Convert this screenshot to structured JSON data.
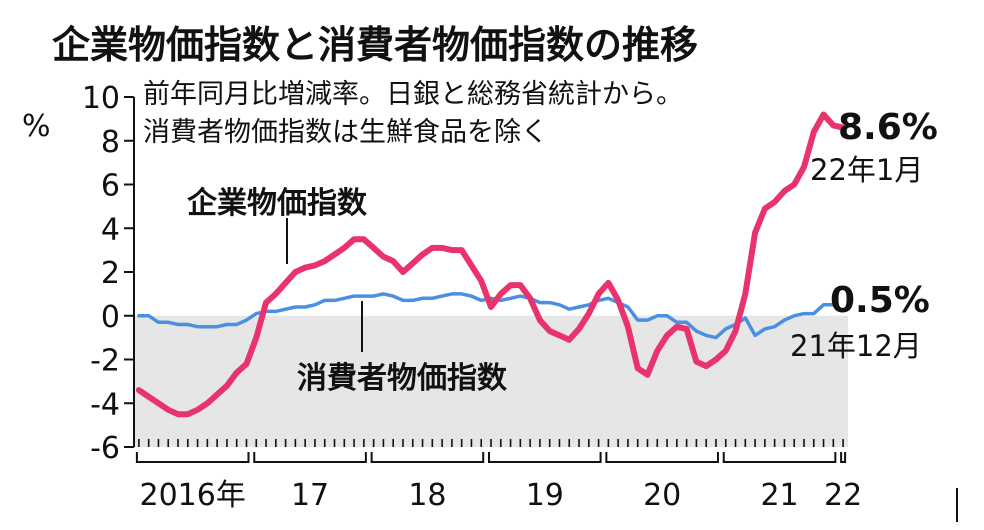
{
  "chart_data": {
    "type": "line",
    "title": "企業物価指数と消費者物価指数の推移",
    "subtitle_lines": [
      "前年同月比増減率。日銀と総務省統計から。",
      "消費者物価指数は生鮮食品を除く"
    ],
    "ylabel": "%",
    "ylim": [
      -6,
      10
    ],
    "yticks": [
      10,
      8,
      6,
      4,
      2,
      0,
      -2,
      -4,
      -6
    ],
    "x_start": "2016-01",
    "x_month_count": 73,
    "year_labels": [
      "2016年",
      "17",
      "18",
      "19",
      "20",
      "21",
      "22"
    ],
    "negative_region_shaded": true,
    "series": [
      {
        "name": "企業物価指数",
        "color": "#e8336d",
        "start": "2016-01",
        "values": [
          -3.4,
          -3.7,
          -4.0,
          -4.3,
          -4.5,
          -4.5,
          -4.3,
          -4.0,
          -3.6,
          -3.2,
          -2.6,
          -2.2,
          -1.0,
          0.6,
          1.0,
          1.5,
          2.0,
          2.2,
          2.3,
          2.5,
          2.8,
          3.1,
          3.5,
          3.5,
          3.1,
          2.7,
          2.5,
          2.0,
          2.4,
          2.8,
          3.1,
          3.1,
          3.0,
          3.0,
          2.3,
          1.6,
          0.4,
          1.0,
          1.4,
          1.4,
          0.8,
          -0.2,
          -0.7,
          -0.9,
          -1.1,
          -0.6,
          0.1,
          1.0,
          1.5,
          0.7,
          -0.5,
          -2.4,
          -2.7,
          -1.6,
          -0.9,
          -0.5,
          -0.6,
          -2.1,
          -2.3,
          -2.0,
          -1.6,
          -0.7,
          1.0,
          3.8,
          4.9,
          5.2,
          5.7,
          6.0,
          6.8,
          8.4,
          9.2,
          8.7,
          8.6
        ],
        "end_value_label": "8.6%",
        "end_date_label": "22年1月"
      },
      {
        "name": "消費者物価指数",
        "color": "#4a90e2",
        "start": "2016-01",
        "values": [
          0.0,
          0.0,
          -0.3,
          -0.3,
          -0.4,
          -0.4,
          -0.5,
          -0.5,
          -0.5,
          -0.4,
          -0.4,
          -0.2,
          0.1,
          0.2,
          0.2,
          0.3,
          0.4,
          0.4,
          0.5,
          0.7,
          0.7,
          0.8,
          0.9,
          0.9,
          0.9,
          1.0,
          0.9,
          0.7,
          0.7,
          0.8,
          0.8,
          0.9,
          1.0,
          1.0,
          0.9,
          0.7,
          0.8,
          0.7,
          0.8,
          0.9,
          0.8,
          0.6,
          0.6,
          0.5,
          0.3,
          0.4,
          0.5,
          0.7,
          0.8,
          0.6,
          0.4,
          -0.2,
          -0.2,
          0.0,
          0.0,
          -0.3,
          -0.3,
          -0.7,
          -0.9,
          -1.0,
          -0.6,
          -0.4,
          -0.1,
          -0.9,
          -0.6,
          -0.5,
          -0.2,
          0.0,
          0.1,
          0.1,
          0.5,
          0.5
        ],
        "end_value_label": "0.5%",
        "end_date_label": "21年12月"
      }
    ]
  }
}
